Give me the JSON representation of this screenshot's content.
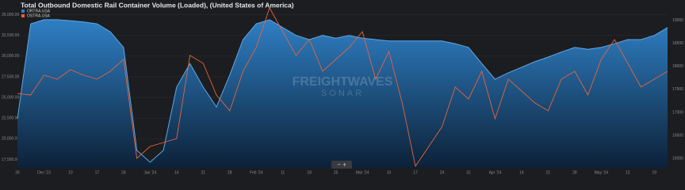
{
  "chart_data": {
    "type": "area_line",
    "title": "Total Outbound Domestic Rail Container Volume (Loaded), (United States of America)",
    "watermark": [
      "FREIGHTWAVES",
      "SONAR"
    ],
    "categories": [
      "26",
      null,
      "Dec '23",
      null,
      "10",
      null,
      "17",
      null,
      "24",
      null,
      "Jan '24",
      null,
      "14",
      null,
      "21",
      null,
      "28",
      null,
      "Feb '24",
      null,
      "11",
      null,
      "18",
      null,
      "25",
      null,
      "Mar '24",
      null,
      "10",
      null,
      "17",
      null,
      "24",
      null,
      "31",
      null,
      "Apr '24",
      null,
      "14",
      null,
      "21",
      null,
      "28",
      null,
      "May '24",
      null,
      "12",
      null,
      "19",
      null
    ],
    "series": [
      {
        "name": "ORTRA.USA",
        "color": "#2f7fc4",
        "axis": "y2",
        "values": [
          16860,
          18920,
          19010,
          19010,
          18990,
          18960,
          18920,
          18750,
          18410,
          16180,
          15920,
          16180,
          17550,
          18060,
          17550,
          17120,
          17810,
          18580,
          18920,
          19010,
          18840,
          18670,
          18580,
          18670,
          18610,
          18670,
          18610,
          18580,
          18550,
          18550,
          18550,
          18550,
          18550,
          18490,
          18410,
          18060,
          17720,
          17860,
          17980,
          18100,
          18200,
          18310,
          18410,
          18370,
          18410,
          18490,
          18580,
          18580,
          18670,
          18840
        ]
      },
      {
        "name": "OSTRA.USA",
        "color": "#e8643a",
        "values": [
          25480,
          25290,
          27680,
          27210,
          28350,
          27680,
          27210,
          28160,
          29600,
          17650,
          19080,
          19560,
          20040,
          30070,
          29120,
          25290,
          23380,
          28160,
          31030,
          35810,
          32940,
          30070,
          31990,
          28160,
          29600,
          31030,
          32940,
          27210,
          30550,
          24340,
          16690,
          19080,
          21470,
          26250,
          24810,
          28160,
          22430,
          27210,
          25770,
          24340,
          23380,
          27210,
          28160,
          25290,
          29600,
          31990,
          29120,
          26250,
          27210,
          28160
        ]
      }
    ],
    "ylim": [
      16500,
      36000
    ],
    "yticks": [
      {
        "value": 17500,
        "label": "17,500.00"
      },
      {
        "value": 20000,
        "label": "20,000.00"
      },
      {
        "value": 22500,
        "label": "22,500.00"
      },
      {
        "value": 25000,
        "label": "25,000.00"
      },
      {
        "value": 27500,
        "label": "27,500.00"
      },
      {
        "value": 30000,
        "label": "30,000.00"
      },
      {
        "value": 32500,
        "label": "32,500.00"
      },
      {
        "value": 35000,
        "label": "35,000.00"
      }
    ],
    "y2lim": [
      15800,
      19300
    ],
    "y2ticks": [
      16000,
      16500,
      17000,
      17500,
      18000,
      18500,
      19000
    ],
    "grid": true
  }
}
